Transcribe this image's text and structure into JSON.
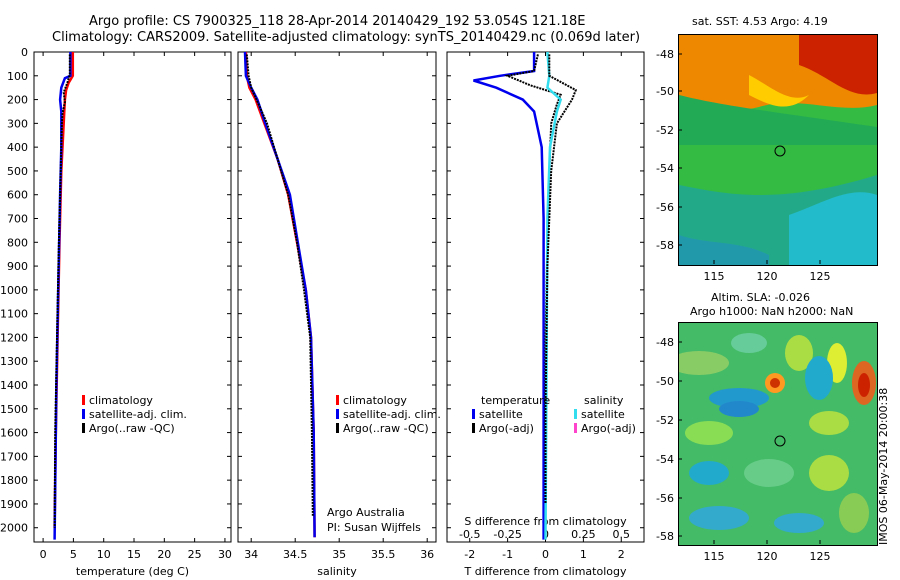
{
  "header": {
    "line1": "Argo profile: CS 7900325_118 28-Apr-2014 20140429_192 53.054S 121.18E",
    "line2": "Climatology: CARS2009. Satellite-adjusted climatology: synTS_20140429.nc (0.069d later)"
  },
  "colors": {
    "climatology": "#ff0000",
    "satellite": "#0000ee",
    "argo": "#000000",
    "salinity_satellite": "#33ddee",
    "salinity_argo": "#ff44cc"
  },
  "depth_axis": {
    "ticks": [
      0,
      100,
      200,
      300,
      400,
      500,
      600,
      700,
      800,
      900,
      1000,
      1100,
      1200,
      1300,
      1400,
      1500,
      1600,
      1700,
      1800,
      1900,
      2000
    ],
    "range": [
      0,
      2060
    ]
  },
  "chart_data": [
    {
      "type": "line",
      "id": "temperature",
      "xlabel": "temperature (deg C)",
      "xlim": [
        -1.5,
        31
      ],
      "xticks": [
        "0",
        "5",
        "10",
        "15",
        "20",
        "25",
        "30"
      ],
      "xtick_values": [
        0,
        5,
        10,
        15,
        20,
        25,
        30
      ],
      "legend": [
        "climatology",
        "satellite-adj. clim.",
        "Argo(..raw -QC)"
      ],
      "series": [
        {
          "name": "climatology",
          "color": "#ff0000",
          "points": [
            [
              4.9,
              0
            ],
            [
              4.9,
              100
            ],
            [
              4.2,
              130
            ],
            [
              3.8,
              160
            ],
            [
              3.6,
              200
            ],
            [
              3.4,
              300
            ],
            [
              3.0,
              500
            ],
            [
              2.7,
              800
            ],
            [
              2.4,
              1200
            ],
            [
              2.1,
              1600
            ],
            [
              1.9,
              2000
            ]
          ]
        },
        {
          "name": "satellite-adj. clim.",
          "color": "#0000ee",
          "points": [
            [
              4.5,
              0
            ],
            [
              4.5,
              100
            ],
            [
              3.6,
              110
            ],
            [
              3.0,
              150
            ],
            [
              2.8,
              200
            ],
            [
              3.0,
              250
            ],
            [
              3.0,
              400
            ],
            [
              2.8,
              600
            ],
            [
              2.5,
              1000
            ],
            [
              2.2,
              1400
            ],
            [
              1.9,
              2050
            ]
          ]
        },
        {
          "name": "Argo(..raw -QC)",
          "color": "#000000",
          "points": [
            [
              4.4,
              10
            ],
            [
              4.4,
              95
            ],
            [
              4.0,
              130
            ],
            [
              3.4,
              170
            ],
            [
              3.6,
              210
            ],
            [
              3.2,
              260
            ],
            [
              3.1,
              300
            ],
            [
              2.9,
              500
            ],
            [
              2.6,
              800
            ],
            [
              2.3,
              1200
            ],
            [
              2.0,
              1600
            ],
            [
              1.9,
              2000
            ]
          ]
        }
      ]
    },
    {
      "type": "line",
      "id": "salinity",
      "xlabel": "salinity",
      "xlim": [
        33.85,
        36.1
      ],
      "xticks": [
        "34",
        "34.5",
        "35",
        "35.5",
        "36"
      ],
      "xtick_values": [
        34,
        34.5,
        35,
        35.5,
        36
      ],
      "legend": [
        "climatology",
        "satellite-adj. clim.",
        "Argo(..raw -QC)"
      ],
      "series": [
        {
          "name": "climatology",
          "color": "#ff0000",
          "points": [
            [
              33.94,
              0
            ],
            [
              33.95,
              100
            ],
            [
              33.98,
              150
            ],
            [
              34.05,
              200
            ],
            [
              34.15,
              300
            ],
            [
              34.3,
              450
            ],
            [
              34.42,
              600
            ],
            [
              34.52,
              800
            ],
            [
              34.62,
              1000
            ],
            [
              34.68,
              1200
            ],
            [
              34.71,
              1600
            ],
            [
              34.72,
              2040
            ]
          ]
        },
        {
          "name": "satellite-adj. clim.",
          "color": "#0000ee",
          "points": [
            [
              33.93,
              0
            ],
            [
              33.94,
              100
            ],
            [
              34.0,
              150
            ],
            [
              34.07,
              200
            ],
            [
              34.16,
              300
            ],
            [
              34.3,
              450
            ],
            [
              34.44,
              600
            ],
            [
              34.53,
              800
            ],
            [
              34.62,
              1000
            ],
            [
              34.68,
              1200
            ],
            [
              34.71,
              1600
            ],
            [
              34.72,
              2040
            ]
          ]
        },
        {
          "name": "Argo(..raw -QC)",
          "color": "#000000",
          "points": [
            [
              33.95,
              10
            ],
            [
              33.97,
              100
            ],
            [
              34.0,
              150
            ],
            [
              34.06,
              200
            ],
            [
              34.12,
              250
            ],
            [
              34.18,
              300
            ],
            [
              34.3,
              450
            ],
            [
              34.42,
              600
            ],
            [
              34.52,
              800
            ],
            [
              34.6,
              1000
            ],
            [
              34.67,
              1200
            ],
            [
              34.69,
              1600
            ],
            [
              34.7,
              1950
            ]
          ]
        }
      ]
    },
    {
      "type": "line",
      "id": "difference",
      "xlabel": "T difference from climatology",
      "xlabel2": "S difference from climatology",
      "xlim": [
        -2.6,
        2.6
      ],
      "xticks": [
        "-2",
        "-1",
        "0",
        "1",
        "2"
      ],
      "xtick_values": [
        -2,
        -1,
        0,
        1,
        2
      ],
      "xticks_top": [
        "-0.5",
        "-0.25",
        "0",
        "0.25",
        "0.5"
      ],
      "xticks_top_values": [
        -2,
        -1,
        0,
        1,
        2
      ],
      "legend_temperature": {
        "title": "temperature",
        "items": [
          "satellite",
          "Argo(-adj)"
        ]
      },
      "legend_salinity": {
        "title": "salinity",
        "items": [
          "satellite",
          "Argo(-adj)"
        ]
      },
      "series": [
        {
          "name": "temperature satellite",
          "color": "#0000ee",
          "points": [
            [
              -0.3,
              0
            ],
            [
              -0.3,
              80
            ],
            [
              -1.2,
              100
            ],
            [
              -1.9,
              120
            ],
            [
              -1.3,
              150
            ],
            [
              -0.6,
              200
            ],
            [
              -0.3,
              250
            ],
            [
              -0.1,
              400
            ],
            [
              -0.05,
              700
            ],
            [
              -0.05,
              2050
            ]
          ]
        },
        {
          "name": "temperature Argo(-adj)",
          "color": "#000000",
          "points": [
            [
              -0.2,
              10
            ],
            [
              -0.3,
              80
            ],
            [
              -1.0,
              100
            ],
            [
              -0.4,
              140
            ],
            [
              0.4,
              180
            ],
            [
              0.3,
              220
            ],
            [
              0.15,
              300
            ],
            [
              0.1,
              500
            ],
            [
              0.05,
              800
            ],
            [
              0.0,
              1200
            ],
            [
              0.0,
              1800
            ]
          ]
        },
        {
          "name": "salinity satellite",
          "color": "#33ddee",
          "points": [
            [
              0.05,
              0
            ],
            [
              0.1,
              100
            ],
            [
              0.05,
              150
            ],
            [
              0.4,
              200
            ],
            [
              0.3,
              250
            ],
            [
              0.12,
              400
            ],
            [
              0.05,
              700
            ],
            [
              0.0,
              2050
            ]
          ]
        },
        {
          "name": "salinity Argo(-adj)",
          "color": "#000000",
          "points": [
            [
              0.1,
              10
            ],
            [
              0.1,
              100
            ],
            [
              0.8,
              160
            ],
            [
              0.7,
              200
            ],
            [
              0.3,
              300
            ],
            [
              0.15,
              500
            ],
            [
              0.05,
              900
            ],
            [
              0.0,
              1500
            ],
            [
              0.0,
              1900
            ]
          ]
        }
      ]
    }
  ],
  "map_sst": {
    "title": "sat. SST: 4.53 Argo: 4.19",
    "yticks": [
      "-48",
      "-50",
      "-52",
      "-54",
      "-56",
      "-58"
    ],
    "xticks": [
      "115",
      "120",
      "125"
    ],
    "bands": [
      {
        "color": "#cc2200"
      },
      {
        "color": "#ee8800"
      },
      {
        "color": "#ffcc00"
      },
      {
        "color": "#22aa55"
      },
      {
        "color": "#33bb44"
      },
      {
        "color": "#22bbcc"
      }
    ]
  },
  "map_sla": {
    "title1": "Altim. SLA: -0.026",
    "title2": "Argo h1000: NaN h2000: NaN",
    "yticks": [
      "-48",
      "-50",
      "-52",
      "-54",
      "-56",
      "-58"
    ],
    "xticks": [
      "115",
      "120",
      "125"
    ]
  },
  "footer": {
    "agency": "Argo Australia",
    "pi": "PI: Susan Wijffels",
    "timestamp": "IMOS 06-May-2014 20:00:38"
  }
}
